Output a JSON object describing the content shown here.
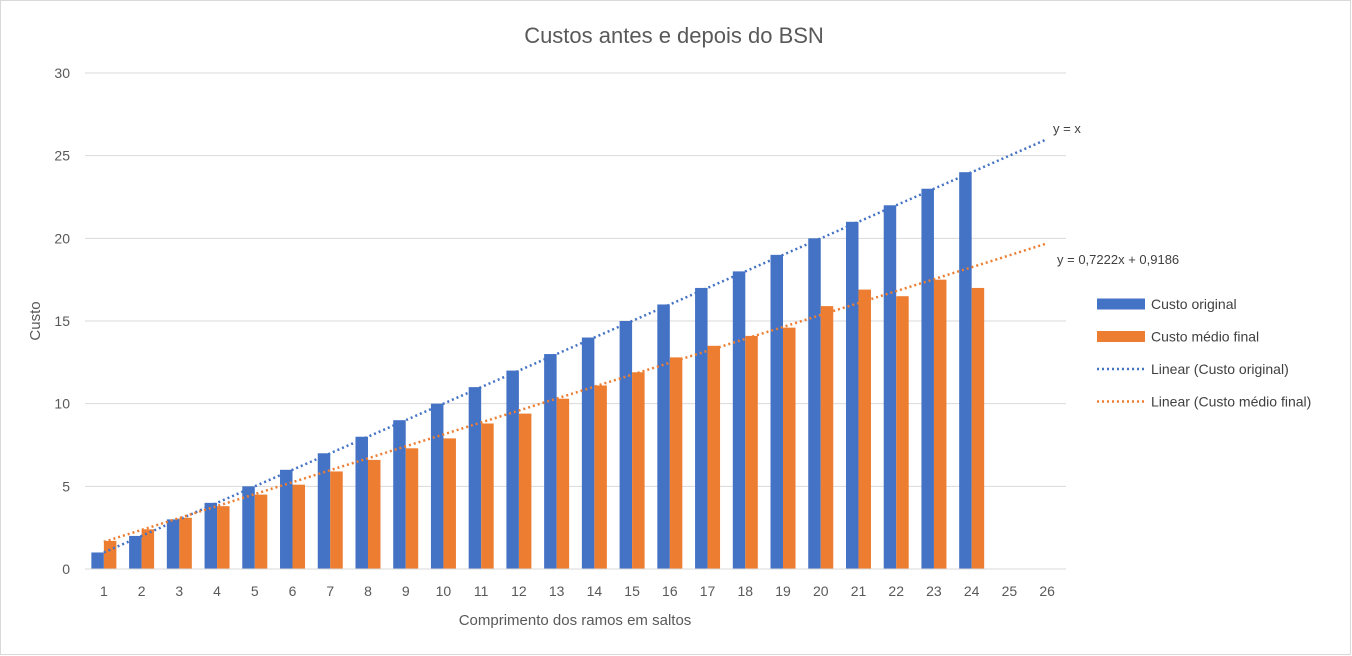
{
  "chart_data": {
    "type": "bar",
    "title": "Custos antes e depois do BSN",
    "xlabel": "Comprimento dos ramos em saltos",
    "ylabel": "Custo",
    "categories": [
      "1",
      "2",
      "3",
      "4",
      "5",
      "6",
      "7",
      "8",
      "9",
      "10",
      "11",
      "12",
      "13",
      "14",
      "15",
      "16",
      "17",
      "18",
      "19",
      "20",
      "21",
      "22",
      "23",
      "24",
      "25",
      "26"
    ],
    "ylim": [
      0,
      30
    ],
    "yticks": [
      0,
      5,
      10,
      15,
      20,
      25,
      30
    ],
    "grid": true,
    "legend_position": "right",
    "series": [
      {
        "name": "Custo original",
        "color": "#4472C4",
        "values": [
          1,
          2,
          3,
          4,
          5,
          6,
          7,
          8,
          9,
          10,
          11,
          12,
          13,
          14,
          15,
          16,
          17,
          18,
          19,
          20,
          21,
          22,
          23,
          24,
          null,
          null
        ]
      },
      {
        "name": "Custo médio final",
        "color": "#ED7D31",
        "values": [
          1.7,
          2.4,
          3.1,
          3.8,
          4.5,
          5.1,
          5.9,
          6.6,
          7.3,
          7.9,
          8.8,
          9.4,
          10.3,
          11.1,
          11.9,
          12.8,
          13.5,
          14.1,
          14.6,
          15.9,
          16.9,
          16.5,
          17.5,
          17.0,
          null,
          null
        ]
      }
    ],
    "trendlines": [
      {
        "name": "Linear (Custo original)",
        "color": "#4472C4",
        "slope": 1,
        "intercept": 0,
        "equation": "y = x",
        "x_range": [
          1,
          26
        ]
      },
      {
        "name": "Linear (Custo médio final)",
        "color": "#ED7D31",
        "slope": 0.7222,
        "intercept": 0.9186,
        "equation": "y = 0,7222x + 0,9186",
        "x_range": [
          1,
          26
        ]
      }
    ]
  }
}
